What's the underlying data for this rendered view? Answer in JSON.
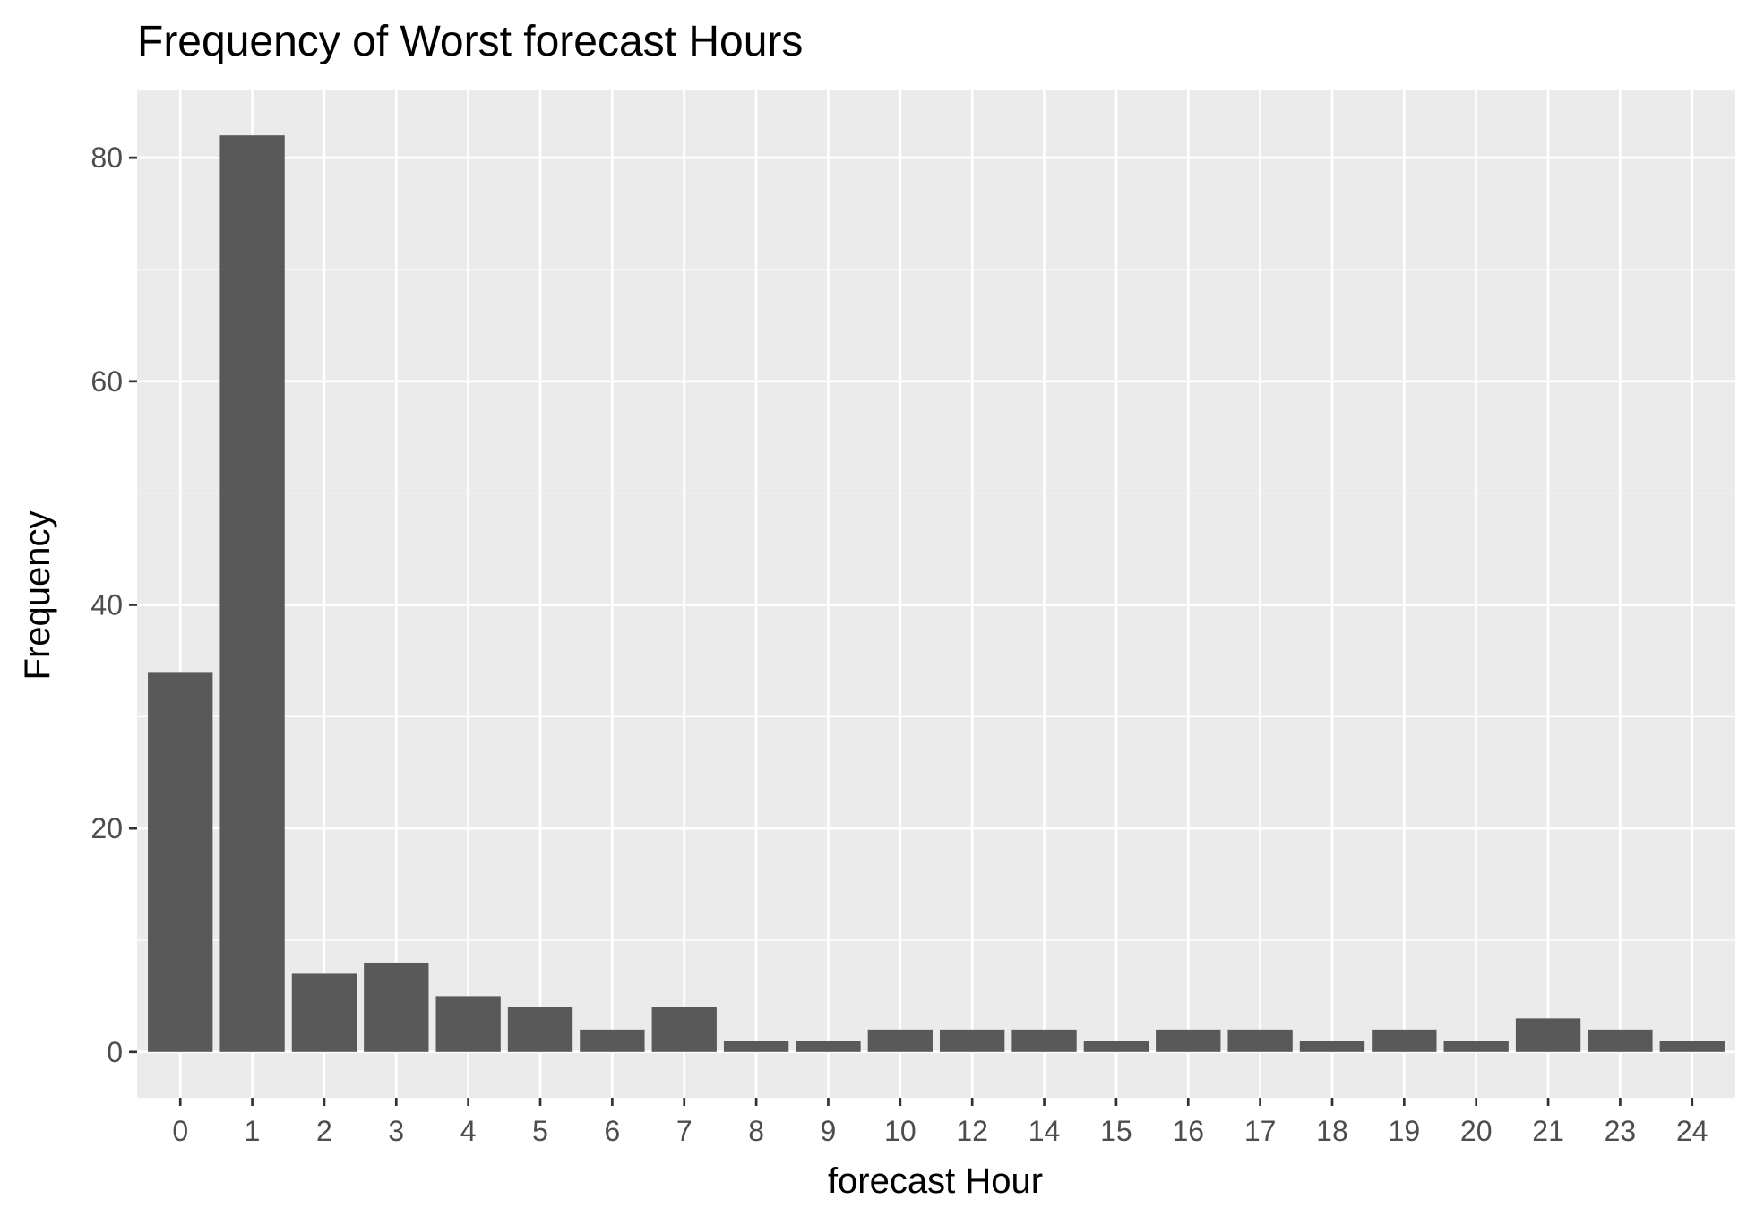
{
  "chart_data": {
    "type": "bar",
    "title": "Frequency of Worst forecast Hours",
    "xlabel": "forecast Hour",
    "ylabel": "Frequency",
    "categories": [
      "0",
      "1",
      "2",
      "3",
      "4",
      "5",
      "6",
      "7",
      "8",
      "9",
      "10",
      "12",
      "14",
      "15",
      "16",
      "17",
      "18",
      "19",
      "20",
      "21",
      "23",
      "24"
    ],
    "values": [
      34,
      82,
      7,
      8,
      5,
      4,
      2,
      4,
      1,
      1,
      2,
      2,
      2,
      1,
      2,
      2,
      1,
      2,
      1,
      3,
      2,
      1
    ],
    "ylim": [
      -4.1,
      86.1
    ],
    "yticks": [
      0,
      20,
      40,
      60,
      80
    ],
    "grid": true,
    "legend": "none",
    "colors": {
      "bar": "#595959",
      "panel": "#ebebeb",
      "grid_major": "#ffffff",
      "tick_label": "#4d4d4d",
      "tick_mark": "#333333"
    }
  }
}
